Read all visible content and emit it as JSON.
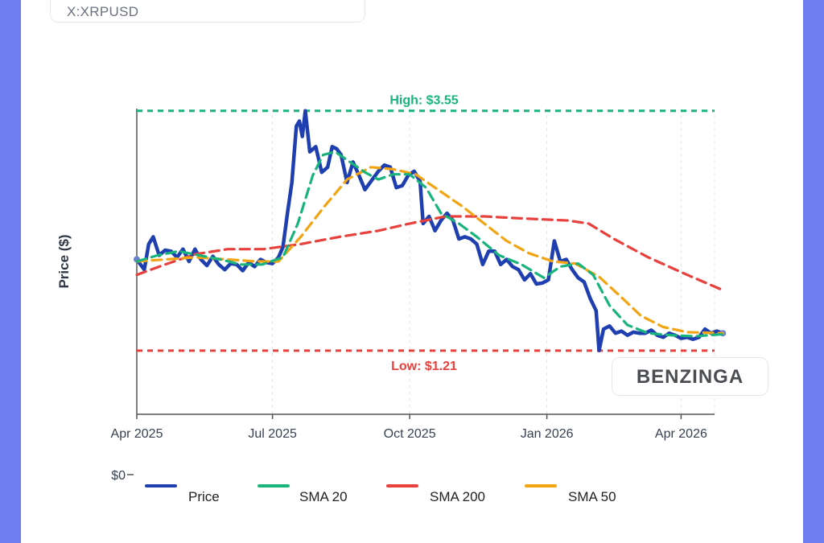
{
  "ticker": "X:XRPUSD",
  "branding": {
    "logo_text": "BENZINGA"
  },
  "colors": {
    "price": "#1f3fb0",
    "sma20": "#19b47c",
    "sma200": "#e8403c",
    "sma50": "#f2a413",
    "high": "#19b47c",
    "low": "#e8403c",
    "grid": "#e3e3e3"
  },
  "chart_data": {
    "type": "line",
    "ylabel": "Price ($)",
    "xlabel": "",
    "x_ticks": [
      "Apr 2025",
      "Jul 2025",
      "Oct 2025",
      "Jan 2026",
      "Apr 2026"
    ],
    "y_ticks": [
      "$0"
    ],
    "grid": "vertical dashed",
    "legend_position": "bottom",
    "high": {
      "label": "High: $3.55",
      "value": 3.55
    },
    "low": {
      "label": "Low: $1.21",
      "value": 1.21
    },
    "ylim": [
      0,
      3.65
    ],
    "series": [
      {
        "name": "Price",
        "key": "price",
        "points": [
          [
            "2025-04-01",
            2.1
          ],
          [
            "2025-04-06",
            2.0
          ],
          [
            "2025-04-09",
            2.25
          ],
          [
            "2025-04-12",
            2.32
          ],
          [
            "2025-04-16",
            2.14
          ],
          [
            "2025-04-20",
            2.19
          ],
          [
            "2025-04-24",
            2.18
          ],
          [
            "2025-04-28",
            2.12
          ],
          [
            "2025-05-02",
            2.2
          ],
          [
            "2025-05-06",
            2.08
          ],
          [
            "2025-05-10",
            2.2
          ],
          [
            "2025-05-14",
            2.1
          ],
          [
            "2025-05-18",
            2.04
          ],
          [
            "2025-05-22",
            2.13
          ],
          [
            "2025-05-26",
            2.05
          ],
          [
            "2025-05-30",
            2.0
          ],
          [
            "2025-06-03",
            2.06
          ],
          [
            "2025-06-07",
            2.05
          ],
          [
            "2025-06-11",
            1.99
          ],
          [
            "2025-06-15",
            2.07
          ],
          [
            "2025-06-19",
            2.03
          ],
          [
            "2025-06-23",
            2.1
          ],
          [
            "2025-06-27",
            2.07
          ],
          [
            "2025-07-01",
            2.06
          ],
          [
            "2025-07-05",
            2.12
          ],
          [
            "2025-07-08",
            2.22
          ],
          [
            "2025-07-11",
            2.55
          ],
          [
            "2025-07-14",
            2.85
          ],
          [
            "2025-07-17",
            3.4
          ],
          [
            "2025-07-19",
            3.45
          ],
          [
            "2025-07-21",
            3.3
          ],
          [
            "2025-07-23",
            3.55
          ],
          [
            "2025-07-26",
            3.15
          ],
          [
            "2025-07-30",
            3.2
          ],
          [
            "2025-08-03",
            2.95
          ],
          [
            "2025-08-07",
            3.0
          ],
          [
            "2025-08-10",
            3.2
          ],
          [
            "2025-08-13",
            3.18
          ],
          [
            "2025-08-16",
            3.12
          ],
          [
            "2025-08-20",
            2.85
          ],
          [
            "2025-08-24",
            3.05
          ],
          [
            "2025-08-28",
            2.92
          ],
          [
            "2025-09-01",
            2.78
          ],
          [
            "2025-09-05",
            2.86
          ],
          [
            "2025-09-10",
            2.96
          ],
          [
            "2025-09-14",
            3.02
          ],
          [
            "2025-09-18",
            3.0
          ],
          [
            "2025-09-22",
            2.8
          ],
          [
            "2025-09-26",
            2.82
          ],
          [
            "2025-09-30",
            2.92
          ],
          [
            "2025-10-04",
            2.96
          ],
          [
            "2025-10-08",
            2.86
          ],
          [
            "2025-10-10",
            2.45
          ],
          [
            "2025-10-14",
            2.52
          ],
          [
            "2025-10-18",
            2.38
          ],
          [
            "2025-10-22",
            2.48
          ],
          [
            "2025-10-26",
            2.55
          ],
          [
            "2025-10-30",
            2.48
          ],
          [
            "2025-11-03",
            2.3
          ],
          [
            "2025-11-07",
            2.32
          ],
          [
            "2025-11-11",
            2.3
          ],
          [
            "2025-11-15",
            2.25
          ],
          [
            "2025-11-19",
            2.05
          ],
          [
            "2025-11-23",
            2.18
          ],
          [
            "2025-11-27",
            2.18
          ],
          [
            "2025-12-01",
            2.05
          ],
          [
            "2025-12-05",
            2.1
          ],
          [
            "2025-12-09",
            2.03
          ],
          [
            "2025-12-13",
            2.0
          ],
          [
            "2025-12-17",
            1.9
          ],
          [
            "2025-12-21",
            1.96
          ],
          [
            "2025-12-25",
            1.86
          ],
          [
            "2025-12-29",
            1.87
          ],
          [
            "2026-01-02",
            1.9
          ],
          [
            "2026-01-06",
            2.28
          ],
          [
            "2026-01-10",
            2.08
          ],
          [
            "2026-01-14",
            2.1
          ],
          [
            "2026-01-18",
            2.0
          ],
          [
            "2026-01-22",
            1.92
          ],
          [
            "2026-01-26",
            1.88
          ],
          [
            "2026-01-30",
            1.72
          ],
          [
            "2026-02-03",
            1.6
          ],
          [
            "2026-02-05",
            1.21
          ],
          [
            "2026-02-08",
            1.42
          ],
          [
            "2026-02-12",
            1.45
          ],
          [
            "2026-02-16",
            1.38
          ],
          [
            "2026-02-20",
            1.4
          ],
          [
            "2026-02-24",
            1.36
          ],
          [
            "2026-02-28",
            1.39
          ],
          [
            "2026-03-04",
            1.38
          ],
          [
            "2026-03-08",
            1.38
          ],
          [
            "2026-03-12",
            1.41
          ],
          [
            "2026-03-16",
            1.36
          ],
          [
            "2026-03-20",
            1.34
          ],
          [
            "2026-03-24",
            1.38
          ],
          [
            "2026-03-28",
            1.36
          ],
          [
            "2026-04-01",
            1.33
          ],
          [
            "2026-04-05",
            1.34
          ],
          [
            "2026-04-09",
            1.32
          ],
          [
            "2026-04-13",
            1.34
          ],
          [
            "2026-04-17",
            1.42
          ],
          [
            "2026-04-21",
            1.38
          ],
          [
            "2026-04-25",
            1.4
          ],
          [
            "2026-04-29",
            1.38
          ]
        ]
      },
      {
        "name": "SMA 20",
        "key": "sma20",
        "points": [
          [
            "2025-04-01",
            2.08
          ],
          [
            "2025-04-15",
            2.14
          ],
          [
            "2025-04-29",
            2.18
          ],
          [
            "2025-05-13",
            2.14
          ],
          [
            "2025-05-27",
            2.1
          ],
          [
            "2025-06-10",
            2.05
          ],
          [
            "2025-06-24",
            2.05
          ],
          [
            "2025-07-08",
            2.12
          ],
          [
            "2025-07-18",
            2.45
          ],
          [
            "2025-07-28",
            2.92
          ],
          [
            "2025-08-04",
            3.12
          ],
          [
            "2025-08-12",
            3.15
          ],
          [
            "2025-08-22",
            3.05
          ],
          [
            "2025-09-01",
            2.95
          ],
          [
            "2025-09-10",
            2.88
          ],
          [
            "2025-09-20",
            2.93
          ],
          [
            "2025-10-01",
            2.93
          ],
          [
            "2025-10-12",
            2.8
          ],
          [
            "2025-10-22",
            2.55
          ],
          [
            "2025-11-03",
            2.45
          ],
          [
            "2025-11-15",
            2.32
          ],
          [
            "2025-11-30",
            2.14
          ],
          [
            "2025-12-15",
            2.05
          ],
          [
            "2025-12-30",
            1.92
          ],
          [
            "2026-01-10",
            2.03
          ],
          [
            "2026-01-22",
            2.06
          ],
          [
            "2026-02-01",
            1.95
          ],
          [
            "2026-02-12",
            1.65
          ],
          [
            "2026-02-24",
            1.46
          ],
          [
            "2026-03-10",
            1.38
          ],
          [
            "2026-03-25",
            1.36
          ],
          [
            "2026-04-10",
            1.35
          ],
          [
            "2026-04-29",
            1.37
          ]
        ]
      },
      {
        "name": "SMA 200",
        "key": "sma200",
        "points": [
          [
            "2025-04-01",
            1.95
          ],
          [
            "2025-04-20",
            2.05
          ],
          [
            "2025-05-10",
            2.15
          ],
          [
            "2025-06-01",
            2.2
          ],
          [
            "2025-06-25",
            2.2
          ],
          [
            "2025-07-20",
            2.25
          ],
          [
            "2025-08-15",
            2.32
          ],
          [
            "2025-09-10",
            2.38
          ],
          [
            "2025-10-01",
            2.45
          ],
          [
            "2025-10-25",
            2.52
          ],
          [
            "2025-11-20",
            2.52
          ],
          [
            "2025-12-15",
            2.5
          ],
          [
            "2026-01-15",
            2.48
          ],
          [
            "2026-01-29",
            2.45
          ],
          [
            "2026-02-15",
            2.3
          ],
          [
            "2026-03-10",
            2.12
          ],
          [
            "2026-04-05",
            1.95
          ],
          [
            "2026-04-29",
            1.8
          ]
        ]
      },
      {
        "name": "SMA 50",
        "key": "sma50",
        "points": [
          [
            "2025-04-01",
            2.08
          ],
          [
            "2025-04-20",
            2.1
          ],
          [
            "2025-05-10",
            2.12
          ],
          [
            "2025-06-01",
            2.1
          ],
          [
            "2025-06-20",
            2.08
          ],
          [
            "2025-07-05",
            2.08
          ],
          [
            "2025-07-20",
            2.32
          ],
          [
            "2025-08-05",
            2.62
          ],
          [
            "2025-08-20",
            2.88
          ],
          [
            "2025-09-05",
            3.0
          ],
          [
            "2025-09-20",
            2.98
          ],
          [
            "2025-10-05",
            2.93
          ],
          [
            "2025-10-20",
            2.78
          ],
          [
            "2025-11-05",
            2.62
          ],
          [
            "2025-11-20",
            2.45
          ],
          [
            "2025-12-05",
            2.28
          ],
          [
            "2025-12-20",
            2.16
          ],
          [
            "2026-01-05",
            2.08
          ],
          [
            "2026-01-20",
            2.06
          ],
          [
            "2026-02-05",
            1.93
          ],
          [
            "2026-02-20",
            1.73
          ],
          [
            "2026-03-05",
            1.55
          ],
          [
            "2026-03-20",
            1.44
          ],
          [
            "2026-04-05",
            1.39
          ],
          [
            "2026-04-29",
            1.38
          ]
        ]
      }
    ]
  }
}
